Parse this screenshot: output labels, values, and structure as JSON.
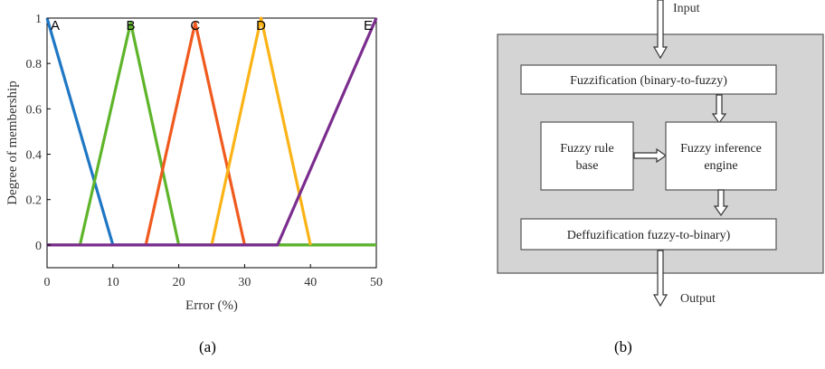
{
  "chart_data": {
    "type": "line",
    "xlabel": "Error (%)",
    "ylabel": "Degree of membership",
    "xlim": [
      0,
      50
    ],
    "ylim": [
      -0.1,
      1
    ],
    "x_ticks": [
      0,
      10,
      20,
      30,
      40,
      50
    ],
    "y_ticks": [
      0,
      0.2,
      0.4,
      0.6,
      0.8,
      1
    ],
    "x_tick_labels": [
      "0",
      "10",
      "20",
      "30",
      "40",
      "50"
    ],
    "y_tick_labels": [
      "0",
      "0.2",
      "0.4",
      "0.6",
      "0.8",
      "1"
    ],
    "grid": false,
    "series": [
      {
        "name": "A",
        "color": "#1f77c4",
        "x": [
          0,
          10,
          50
        ],
        "y": [
          1,
          0,
          0
        ]
      },
      {
        "name": "B",
        "color": "#5fb52a",
        "x": [
          0,
          5,
          12.7,
          20,
          50
        ],
        "y": [
          0,
          0,
          0.98,
          0,
          0
        ]
      },
      {
        "name": "C",
        "color": "#f05a1e",
        "x": [
          15,
          22.5,
          30
        ],
        "y": [
          0,
          0.98,
          0
        ]
      },
      {
        "name": "D",
        "color": "#fbb316",
        "x": [
          25,
          32.5,
          40
        ],
        "y": [
          0,
          1,
          0
        ]
      },
      {
        "name": "E",
        "color": "#7b2d8e",
        "x": [
          0,
          35,
          50
        ],
        "y": [
          0,
          0,
          1
        ]
      }
    ]
  },
  "diagram": {
    "input_label": "Input",
    "output_label": "Output",
    "fuzzification": "Fuzzification (binary-to-fuzzy)",
    "rule_base_line1": "Fuzzy rule",
    "rule_base_line2": "base",
    "inference_line1": "Fuzzy inference",
    "inference_line2": "engine",
    "defuzzification": "Deffuzification fuzzy-to-binary)"
  },
  "captions": {
    "a": "(a)",
    "b": "(b)"
  }
}
